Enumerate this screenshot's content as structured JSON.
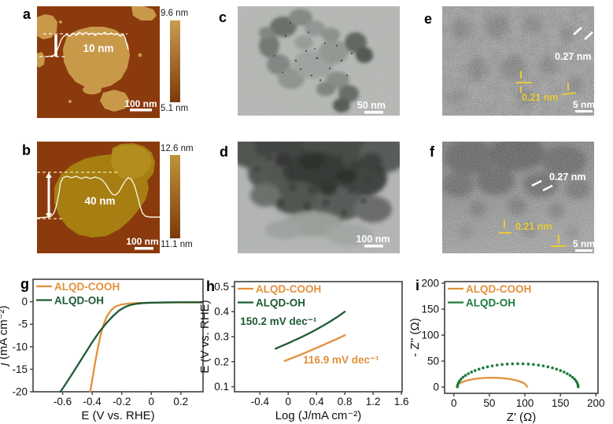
{
  "panels": {
    "a": {
      "label": "a",
      "thickness": "10 nm",
      "scale_bar": "100 nm",
      "colorbar_max": "9.6 nm",
      "colorbar_min": "5.1 nm"
    },
    "b": {
      "label": "b",
      "thickness": "40 nm",
      "scale_bar": "100 nm",
      "colorbar_max": "12.6 nm",
      "colorbar_min": "11.1 nm"
    },
    "c": {
      "label": "c",
      "scale_bar": "50 nm"
    },
    "d": {
      "label": "d",
      "scale_bar": "100 nm"
    },
    "e": {
      "label": "e",
      "d_spacing_1": "0.27 nm",
      "d_spacing_2": "0.21 nm",
      "scale_bar": "5 nm"
    },
    "f": {
      "label": "f",
      "d_spacing_1": "0.27 nm",
      "d_spacing_2": "0.21 nm",
      "scale_bar": "5 nm"
    },
    "g": {
      "label": "g"
    },
    "h": {
      "label": "h"
    },
    "i": {
      "label": "i"
    }
  },
  "colors": {
    "orange": "#E2913B",
    "green": "#1E5A36",
    "green_dots": "#1E7B3C",
    "afm_bg": "#8B3A0D",
    "afm_flake_a": "#C9994A",
    "afm_flake_b": "#A67E12"
  },
  "chart_data": [
    {
      "id": "g",
      "type": "line",
      "xlabel": "E (V vs. RHE)",
      "ylabel_parts": [
        {
          "t": "j",
          "i": true
        },
        {
          "t": " (mA cm⁻²)"
        }
      ],
      "xlim": [
        -0.8,
        0.35
      ],
      "ylim": [
        -20,
        5
      ],
      "xticks": [
        {
          "v": -0.6,
          "l": "-0.6"
        },
        {
          "v": -0.4,
          "l": "-0.4"
        },
        {
          "v": -0.2,
          "l": "-0.2"
        },
        {
          "v": 0,
          "l": "0"
        },
        {
          "v": 0.2,
          "l": "0.2"
        }
      ],
      "yticks": [
        {
          "v": 0,
          "l": "0"
        },
        {
          "v": -5,
          "l": "-5"
        },
        {
          "v": -10,
          "l": "-10"
        },
        {
          "v": -15,
          "l": "-15"
        },
        {
          "v": -20,
          "l": "-20"
        }
      ],
      "series": [
        {
          "name": "ALQD-COOH",
          "color": "#E2913B",
          "style": "line",
          "points": [
            [
              0.34,
              -0.15
            ],
            [
              0.2,
              -0.15
            ],
            [
              0.1,
              -0.18
            ],
            [
              0,
              -0.22
            ],
            [
              -0.1,
              -0.3
            ],
            [
              -0.15,
              -0.4
            ],
            [
              -0.2,
              -0.6
            ],
            [
              -0.24,
              -1.0
            ],
            [
              -0.27,
              -1.8
            ],
            [
              -0.3,
              -3.2
            ],
            [
              -0.32,
              -4.8
            ],
            [
              -0.34,
              -7.0
            ],
            [
              -0.36,
              -10.0
            ],
            [
              -0.38,
              -13.5
            ],
            [
              -0.4,
              -17.5
            ],
            [
              -0.413,
              -20
            ]
          ]
        },
        {
          "name": "ALQD-OH",
          "color": "#1E5A36",
          "style": "line",
          "points": [
            [
              0.34,
              -0.1
            ],
            [
              0.2,
              -0.12
            ],
            [
              0.1,
              -0.15
            ],
            [
              0,
              -0.2
            ],
            [
              -0.06,
              -0.3
            ],
            [
              -0.1,
              -0.45
            ],
            [
              -0.14,
              -0.7
            ],
            [
              -0.18,
              -1.2
            ],
            [
              -0.22,
              -2.0
            ],
            [
              -0.26,
              -3.2
            ],
            [
              -0.3,
              -4.6
            ],
            [
              -0.35,
              -6.6
            ],
            [
              -0.4,
              -9.0
            ],
            [
              -0.45,
              -11.6
            ],
            [
              -0.5,
              -14.2
            ],
            [
              -0.55,
              -16.8
            ],
            [
              -0.6,
              -19.3
            ],
            [
              -0.615,
              -20
            ]
          ]
        }
      ],
      "annotations": []
    },
    {
      "id": "h",
      "type": "line",
      "xlabel": "Log (J/mA cm⁻²)",
      "ylabel_parts": [
        {
          "t": "E (V vs. RHE)"
        }
      ],
      "xlim": [
        -0.76,
        1.61
      ],
      "ylim": [
        0.08,
        0.52
      ],
      "xticks": [
        {
          "v": -0.4,
          "l": "-0.4"
        },
        {
          "v": 0,
          "l": "0"
        },
        {
          "v": 0.4,
          "l": "0.4"
        },
        {
          "v": 0.8,
          "l": "0.8"
        },
        {
          "v": 1.2,
          "l": "1.2"
        },
        {
          "v": 1.6,
          "l": "1.6"
        }
      ],
      "yticks": [
        {
          "v": 0.1,
          "l": "0.1"
        },
        {
          "v": 0.2,
          "l": "0.2"
        },
        {
          "v": 0.3,
          "l": "0.3"
        },
        {
          "v": 0.4,
          "l": "0.4"
        },
        {
          "v": 0.5,
          "l": "0.5"
        }
      ],
      "series": [
        {
          "name": "ALQD-COOH",
          "color": "#E2913B",
          "style": "line",
          "points": [
            [
              -0.05,
              0.203
            ],
            [
              0.05,
              0.214
            ],
            [
              0.15,
              0.225
            ],
            [
              0.25,
              0.237
            ],
            [
              0.35,
              0.249
            ],
            [
              0.45,
              0.261
            ],
            [
              0.55,
              0.274
            ],
            [
              0.65,
              0.286
            ],
            [
              0.75,
              0.299
            ],
            [
              0.8,
              0.306
            ]
          ]
        },
        {
          "name": "ALQD-OH",
          "color": "#1E5A36",
          "style": "line",
          "points": [
            [
              -0.18,
              0.252
            ],
            [
              -0.1,
              0.262
            ],
            [
              0,
              0.274
            ],
            [
              0.1,
              0.287
            ],
            [
              0.2,
              0.3
            ],
            [
              0.3,
              0.314
            ],
            [
              0.4,
              0.329
            ],
            [
              0.5,
              0.345
            ],
            [
              0.6,
              0.362
            ],
            [
              0.7,
              0.38
            ],
            [
              0.8,
              0.4
            ]
          ]
        }
      ],
      "annotations": [
        {
          "text": "150.2 mV dec⁻¹",
          "color": "#1E5A36",
          "x": -0.68,
          "y": 0.347
        },
        {
          "text": "116.9 mV dec⁻¹",
          "color": "#E2913B",
          "x": 0.21,
          "y": 0.193
        }
      ]
    },
    {
      "id": "i",
      "type": "scatter",
      "xlabel": "Z' (Ω)",
      "ylabel_parts": [
        {
          "t": "- Z'' (Ω)"
        }
      ],
      "xlim": [
        -13,
        203
      ],
      "ylim": [
        -12,
        203
      ],
      "xticks": [
        {
          "v": 0,
          "l": "0"
        },
        {
          "v": 50,
          "l": "50"
        },
        {
          "v": 100,
          "l": "100"
        },
        {
          "v": 150,
          "l": "150"
        },
        {
          "v": 200,
          "l": "200"
        }
      ],
      "yticks": [
        {
          "v": 0,
          "l": "0"
        },
        {
          "v": 50,
          "l": "50"
        },
        {
          "v": 100,
          "l": "100"
        },
        {
          "v": 150,
          "l": "150"
        },
        {
          "v": 200,
          "l": "200"
        }
      ],
      "series": [
        {
          "name": "ALQD-COOH",
          "color": "#E2913B",
          "style": "line",
          "points": [
            [
              4,
              0
            ],
            [
              4.7,
              3.1
            ],
            [
              7,
              6.2
            ],
            [
              10.6,
              9
            ],
            [
              15.6,
              11.6
            ],
            [
              21.7,
              13.8
            ],
            [
              28.8,
              15.6
            ],
            [
              36.6,
              16.9
            ],
            [
              44.9,
              17.7
            ],
            [
              53.5,
              18
            ],
            [
              62.1,
              17.7
            ],
            [
              70.4,
              16.9
            ],
            [
              78.3,
              15.6
            ],
            [
              85.3,
              13.8
            ],
            [
              91.4,
              11.6
            ],
            [
              96.4,
              9
            ],
            [
              100,
              6.2
            ],
            [
              102.3,
              3.1
            ],
            [
              103,
              0.5
            ]
          ]
        },
        {
          "name": "ALQD-OH",
          "color": "#1E7B3C",
          "style": "dots",
          "points": [
            [
              5,
              0.5
            ],
            [
              5.3,
              3.9
            ],
            [
              6.3,
              7.8
            ],
            [
              7.9,
              11.6
            ],
            [
              10.1,
              15.4
            ],
            [
              13,
              19
            ],
            [
              16.4,
              22.5
            ],
            [
              20.4,
              25.8
            ],
            [
              24.9,
              28.9
            ],
            [
              29.9,
              31.8
            ],
            [
              35.4,
              34.5
            ],
            [
              41.2,
              36.9
            ],
            [
              47.5,
              39
            ],
            [
              54.1,
              40.8
            ],
            [
              60.9,
              42.3
            ],
            [
              68,
              43.5
            ],
            [
              75.2,
              44.3
            ],
            [
              82.6,
              44.8
            ],
            [
              90,
              45
            ],
            [
              97.4,
              44.8
            ],
            [
              104.8,
              44.3
            ],
            [
              112,
              43.5
            ],
            [
              119.1,
              42.3
            ],
            [
              125.9,
              40.8
            ],
            [
              132.5,
              39
            ],
            [
              138.8,
              36.9
            ],
            [
              144.6,
              34.5
            ],
            [
              150.1,
              31.8
            ],
            [
              155.1,
              28.9
            ],
            [
              159.6,
              25.8
            ],
            [
              163.6,
              22.5
            ],
            [
              167,
              19
            ],
            [
              169.9,
              15.4
            ],
            [
              172.1,
              11.6
            ],
            [
              173.7,
              7.8
            ],
            [
              174.7,
              3.9
            ],
            [
              175,
              0.5
            ]
          ]
        }
      ],
      "annotations": []
    }
  ]
}
